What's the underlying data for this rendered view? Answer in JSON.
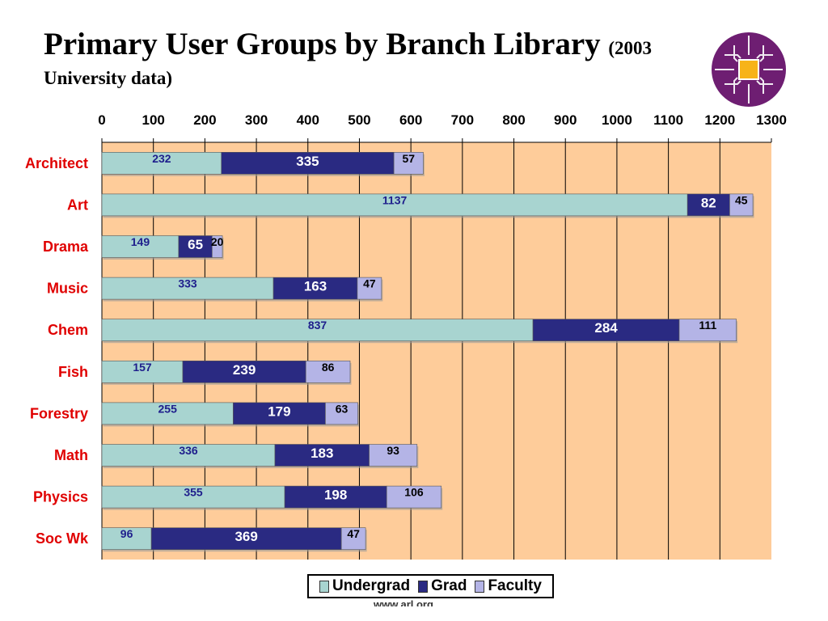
{
  "title": {
    "main": "Primary User Groups by Branch Library",
    "sub": "(2003",
    "line2": "University data)"
  },
  "footer": "www.arl.org",
  "colors": {
    "plot_background": "#FECC9A",
    "undergrad": "#A8D4D0",
    "grad": "#2A2A82",
    "faculty": "#B4B4E6",
    "category_label": "#E00000",
    "logo_purple": "#6E1E72",
    "logo_gold": "#F7B319"
  },
  "chart_data": {
    "type": "bar",
    "orientation": "horizontal",
    "stacked": true,
    "categories": [
      "Architect",
      "Art",
      "Drama",
      "Music",
      "Chem",
      "Fish",
      "Forestry",
      "Math",
      "Physics",
      "Soc Wk"
    ],
    "series": [
      {
        "name": "Undergrad",
        "values": [
          232,
          1137,
          149,
          333,
          837,
          157,
          255,
          336,
          355,
          96
        ]
      },
      {
        "name": "Grad",
        "values": [
          335,
          82,
          65,
          163,
          284,
          239,
          179,
          183,
          198,
          369
        ]
      },
      {
        "name": "Faculty",
        "values": [
          57,
          45,
          20,
          47,
          111,
          86,
          63,
          93,
          106,
          47
        ]
      }
    ],
    "xlim": [
      0,
      1300
    ],
    "xticks": [
      0,
      100,
      200,
      300,
      400,
      500,
      600,
      700,
      800,
      900,
      1000,
      1100,
      1200,
      1300
    ],
    "x_axis_position": "top",
    "grid": true,
    "legend_position": "bottom"
  }
}
